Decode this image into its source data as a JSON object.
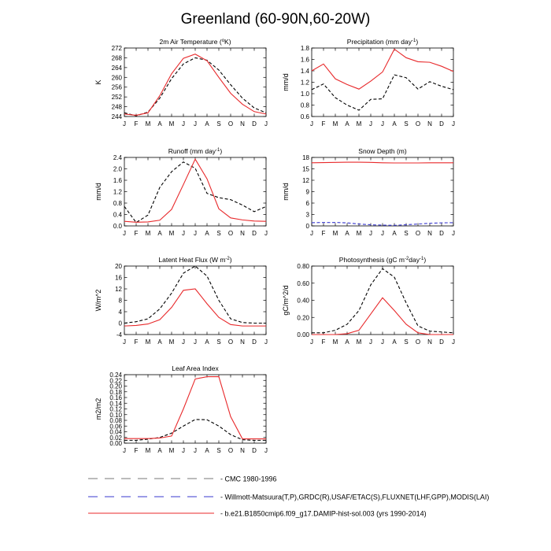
{
  "page_title": "Greenland (60-90N,60-20W)",
  "months": [
    "J",
    "F",
    "M",
    "A",
    "M",
    "J",
    "J",
    "A",
    "S",
    "O",
    "N",
    "D",
    "J"
  ],
  "colors": {
    "model": "#e8292b",
    "obs": "#000000",
    "obs2": "#3a3acf",
    "legend_gray": "#777777"
  },
  "legend": [
    {
      "label": "CMC 1980-1996",
      "style": "dashed",
      "color": "#777777"
    },
    {
      "label": "Willmott-Matsuura(T,P),GRDC(R),USAF/ETAC(S),FLUXNET(LHF,GPP),MODIS(LAI)",
      "style": "dashed",
      "color": "#3a3acf"
    },
    {
      "label": "b.e21.B1850cmip6.f09_g17.DAMIP-hist-sol.003 (yrs 1990-2014)",
      "style": "solid",
      "color": "#e8292b"
    }
  ],
  "chart_data": [
    {
      "type": "line",
      "title": "2m Air Temperature (°K)",
      "title_main": "2m Air Temperature (",
      "title_sup": "o",
      "title_rest": "K)",
      "ylabel": "K",
      "ylim": [
        244,
        272
      ],
      "yticks": [
        244,
        248,
        252,
        256,
        260,
        264,
        268,
        272
      ],
      "series": [
        {
          "role": "obs",
          "style": "dashed",
          "values": [
            245.5,
            244.3,
            245.8,
            251.5,
            259.5,
            265.5,
            268.0,
            267.0,
            263.0,
            257.0,
            251.5,
            247.5,
            245.5
          ]
        },
        {
          "role": "model",
          "style": "solid",
          "values": [
            245.0,
            244.5,
            245.5,
            252.5,
            261.5,
            267.8,
            269.5,
            266.8,
            260.0,
            253.5,
            249.0,
            246.0,
            245.0
          ]
        }
      ]
    },
    {
      "type": "line",
      "title": "Precipitation (mm day-1)",
      "title_main": "Precipitation (mm day",
      "title_sup": "-1",
      "title_rest": ")",
      "ylabel": "mm/d",
      "ylim": [
        0.6,
        1.8
      ],
      "yticks": [
        "0.6",
        "0.8",
        "1.0",
        "1.2",
        "1.4",
        "1.6",
        "1.8"
      ],
      "series": [
        {
          "role": "obs",
          "style": "dashed",
          "values": [
            1.07,
            1.17,
            0.93,
            0.8,
            0.71,
            0.9,
            0.91,
            1.33,
            1.28,
            1.08,
            1.21,
            1.13,
            1.07
          ]
        },
        {
          "role": "model",
          "style": "solid",
          "values": [
            1.4,
            1.52,
            1.26,
            1.16,
            1.08,
            1.22,
            1.38,
            1.78,
            1.63,
            1.56,
            1.55,
            1.48,
            1.39
          ]
        }
      ]
    },
    {
      "type": "line",
      "title": "Runoff (mm day-1)",
      "title_main": "Runoff (mm day",
      "title_sup": "-1",
      "title_rest": ")",
      "ylabel": "mm/d",
      "ylim": [
        0.0,
        2.4
      ],
      "yticks": [
        "0.0",
        "0.4",
        "0.8",
        "1.2",
        "1.6",
        "2.0",
        "2.4"
      ],
      "series": [
        {
          "role": "obs",
          "style": "dashed",
          "values": [
            0.68,
            0.12,
            0.38,
            1.35,
            1.9,
            2.24,
            2.02,
            1.14,
            0.99,
            0.92,
            0.73,
            0.5,
            0.68
          ]
        },
        {
          "role": "model",
          "style": "solid",
          "values": [
            0.16,
            0.13,
            0.14,
            0.2,
            0.58,
            1.45,
            2.34,
            1.65,
            0.6,
            0.28,
            0.21,
            0.17,
            0.16
          ]
        }
      ]
    },
    {
      "type": "line",
      "title": "Snow Depth (m)",
      "title_main": "Snow Depth (m)",
      "title_sup": "",
      "title_rest": "",
      "ylabel": "mm/d",
      "ylim": [
        0,
        18
      ],
      "yticks": [
        "0",
        "3",
        "6",
        "9",
        "12",
        "15",
        "18"
      ],
      "series": [
        {
          "role": "obs2",
          "style": "dashed",
          "values": [
            0.85,
            0.9,
            0.9,
            0.8,
            0.5,
            0.3,
            0.2,
            0.15,
            0.3,
            0.5,
            0.7,
            0.8,
            0.85
          ]
        },
        {
          "role": "model",
          "style": "solid",
          "values": [
            16.6,
            16.65,
            16.7,
            16.75,
            16.75,
            16.7,
            16.6,
            16.55,
            16.55,
            16.55,
            16.6,
            16.6,
            16.6
          ]
        }
      ]
    },
    {
      "type": "line",
      "title": "Latent Heat Flux (W m-2)",
      "title_main": "Latent Heat Flux (W m",
      "title_sup": "-2",
      "title_rest": ")",
      "ylabel": "W/m^2",
      "ylim": [
        -4,
        20
      ],
      "yticks": [
        "-4",
        "0",
        "4",
        "8",
        "12",
        "16",
        "20"
      ],
      "series": [
        {
          "role": "obs",
          "style": "dashed",
          "values": [
            0.0,
            0.5,
            1.5,
            5.0,
            10.5,
            17.5,
            20.0,
            16.5,
            8.0,
            1.5,
            0.2,
            0.0,
            0.0
          ]
        },
        {
          "role": "model",
          "style": "solid",
          "values": [
            -1.0,
            -0.8,
            -0.3,
            1.2,
            5.5,
            11.5,
            12.0,
            6.8,
            2.0,
            -0.5,
            -1.0,
            -1.0,
            -1.0
          ]
        }
      ]
    },
    {
      "type": "line",
      "title": "Photosynthesis (gC m-2day-1)",
      "title_main": "Photosynthesis (gC m",
      "title_sup": "-2",
      "title_rest": "day",
      "title_sup2": "-1",
      "title_rest2": ")",
      "ylabel": "gC/m^2/d",
      "ylim": [
        0.0,
        0.8
      ],
      "yticks": [
        "0.00",
        "0.20",
        "0.40",
        "0.60",
        "0.80"
      ],
      "series": [
        {
          "role": "obs",
          "style": "dashed",
          "values": [
            0.02,
            0.02,
            0.05,
            0.12,
            0.28,
            0.58,
            0.77,
            0.67,
            0.37,
            0.1,
            0.04,
            0.03,
            0.02
          ]
        },
        {
          "role": "model",
          "style": "solid",
          "values": [
            0.0,
            0.0,
            0.0,
            0.01,
            0.05,
            0.24,
            0.43,
            0.28,
            0.12,
            0.02,
            0.0,
            0.0,
            0.0
          ]
        }
      ]
    },
    {
      "type": "line",
      "title": "Leaf Area Index",
      "title_main": "Leaf Area Index",
      "title_sup": "",
      "title_rest": "",
      "ylabel": "m2/m2",
      "ylim": [
        0.0,
        0.24
      ],
      "yticks": [
        "0.00",
        "0.02",
        "0.04",
        "0.06",
        "0.08",
        "0.10",
        "0.12",
        "0.14",
        "0.16",
        "0.18",
        "0.20",
        "0.22",
        "0.24"
      ],
      "series": [
        {
          "role": "obs",
          "style": "dashed",
          "values": [
            0.01,
            0.01,
            0.014,
            0.02,
            0.035,
            0.06,
            0.083,
            0.082,
            0.06,
            0.03,
            0.012,
            0.01,
            0.01
          ]
        },
        {
          "role": "model",
          "style": "solid",
          "values": [
            0.016,
            0.016,
            0.016,
            0.018,
            0.025,
            0.12,
            0.225,
            0.233,
            0.233,
            0.093,
            0.015,
            0.015,
            0.015
          ]
        }
      ]
    }
  ]
}
